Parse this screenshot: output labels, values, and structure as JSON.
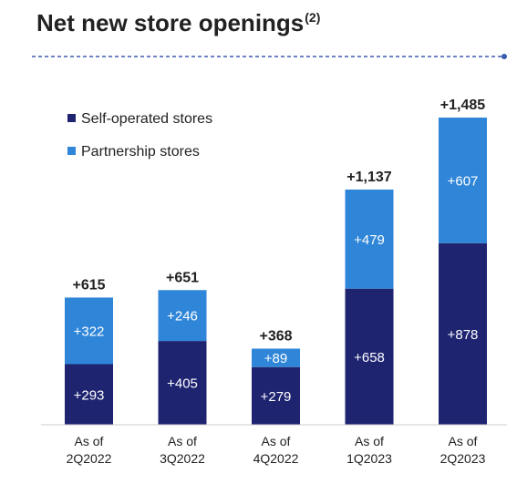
{
  "title": "Net new store openings",
  "title_note": "(2)",
  "chart_data": {
    "type": "bar",
    "stacked": true,
    "categories": [
      "As of 2Q2022",
      "As of 3Q2022",
      "As of 4Q2022",
      "As of 1Q2023",
      "As of 2Q2023"
    ],
    "category_lines": [
      [
        "As of",
        "2Q2022"
      ],
      [
        "As of",
        "3Q2022"
      ],
      [
        "As of",
        "4Q2022"
      ],
      [
        "As of",
        "1Q2023"
      ],
      [
        "As of",
        "2Q2023"
      ]
    ],
    "series": [
      {
        "name": "Self-operated stores",
        "values": [
          293,
          405,
          279,
          658,
          878
        ],
        "labels": [
          "+293",
          "+405",
          "+279",
          "+658",
          "+878"
        ],
        "color": "#1f2470"
      },
      {
        "name": "Partnership stores",
        "values": [
          322,
          246,
          89,
          479,
          607
        ],
        "labels": [
          "+322",
          "+246",
          "+89",
          "+479",
          "+607"
        ],
        "color": "#2f86d8"
      }
    ],
    "totals": [
      615,
      651,
      368,
      1137,
      1485
    ],
    "total_labels": [
      "+615",
      "+651",
      "+368",
      "+1,137",
      "+1,485"
    ],
    "ylim": [
      0,
      1485
    ],
    "grid": false,
    "legend_position": "top-left",
    "divider_color": "#3b5bb0"
  }
}
